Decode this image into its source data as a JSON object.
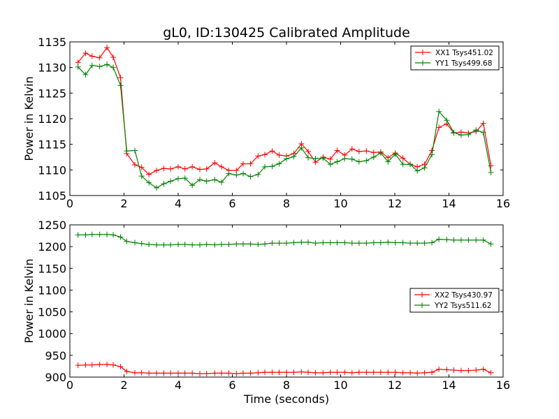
{
  "figure": {
    "title": "gL0, ID:130425 Calibrated Amplitude"
  },
  "chart_data": [
    {
      "type": "line",
      "ylabel": "Power in Kelvin",
      "xlabel": "",
      "xlim": [
        0,
        16
      ],
      "ylim": [
        1105,
        1135
      ],
      "xticks": [
        "0",
        "2",
        "4",
        "6",
        "8",
        "10",
        "12",
        "14",
        "16"
      ],
      "yticks": [
        "1105",
        "1110",
        "1115",
        "1120",
        "1125",
        "1130",
        "1135"
      ],
      "legend_position": "top-right",
      "x": [
        0.3,
        0.58,
        0.82,
        1.1,
        1.37,
        1.6,
        1.87,
        2.1,
        2.4,
        2.65,
        2.92,
        3.2,
        3.47,
        3.72,
        4.0,
        4.25,
        4.52,
        4.8,
        5.05,
        5.35,
        5.6,
        5.87,
        6.15,
        6.4,
        6.67,
        6.95,
        7.2,
        7.47,
        7.73,
        8.0,
        8.27,
        8.55,
        8.8,
        9.07,
        9.35,
        9.62,
        9.87,
        10.15,
        10.42,
        10.68,
        10.95,
        11.22,
        11.48,
        11.75,
        12.02,
        12.3,
        12.57,
        12.83,
        13.1,
        13.37,
        13.63,
        13.92,
        14.18,
        14.45,
        14.72,
        15.0,
        15.27,
        15.55
      ],
      "series": [
        {
          "name": "XX1 Tsys451.02",
          "color": "#ff0000",
          "values": [
            1131.0,
            1132.8,
            1132.2,
            1131.9,
            1133.9,
            1132.0,
            1128.0,
            1113.2,
            1111.0,
            1110.5,
            1109.1,
            1109.9,
            1110.3,
            1110.2,
            1110.6,
            1110.2,
            1110.6,
            1110.1,
            1110.2,
            1111.4,
            1110.6,
            1109.9,
            1109.9,
            1111.2,
            1111.2,
            1112.7,
            1113.0,
            1113.7,
            1112.9,
            1112.7,
            1113.2,
            1115.1,
            1113.6,
            1111.5,
            1112.5,
            1112.1,
            1113.8,
            1112.9,
            1114.1,
            1113.6,
            1113.7,
            1113.4,
            1113.5,
            1112.4,
            1113.3,
            1112.3,
            1111.1,
            1110.6,
            1111.1,
            1113.8,
            1118.3,
            1119.0,
            1117.2,
            1117.4,
            1117.2,
            1117.5,
            1119.1,
            1110.8
          ]
        },
        {
          "name": "YY1 Tsys499.68",
          "color": "#008000",
          "values": [
            1130.1,
            1128.6,
            1130.4,
            1130.2,
            1130.6,
            1130.0,
            1126.5,
            1113.7,
            1113.8,
            1108.8,
            1107.5,
            1106.5,
            1107.3,
            1107.8,
            1108.3,
            1108.4,
            1107.0,
            1108.1,
            1107.8,
            1108.1,
            1107.6,
            1109.3,
            1109.0,
            1109.3,
            1108.7,
            1109.1,
            1110.6,
            1110.7,
            1111.2,
            1112.2,
            1112.6,
            1114.3,
            1112.4,
            1112.2,
            1112.3,
            1111.1,
            1111.6,
            1112.2,
            1112.1,
            1111.6,
            1111.8,
            1112.5,
            1113.3,
            1111.6,
            1113.1,
            1111.1,
            1111.1,
            1109.8,
            1110.4,
            1113.0,
            1121.4,
            1119.7,
            1117.3,
            1116.8,
            1116.9,
            1117.8,
            1117.3,
            1109.5
          ]
        }
      ]
    },
    {
      "type": "line",
      "ylabel": "Power in Kelvin",
      "xlabel": "Time (seconds)",
      "xlim": [
        0,
        16
      ],
      "ylim": [
        900,
        1250
      ],
      "xticks": [
        "0",
        "2",
        "4",
        "6",
        "8",
        "10",
        "12",
        "14",
        "16"
      ],
      "yticks": [
        "900",
        "950",
        "1000",
        "1050",
        "1100",
        "1150",
        "1200",
        "1250"
      ],
      "legend_position": "center-right",
      "x": [
        0.3,
        0.58,
        0.82,
        1.1,
        1.37,
        1.6,
        1.87,
        2.1,
        2.4,
        2.65,
        2.92,
        3.2,
        3.47,
        3.72,
        4.0,
        4.25,
        4.52,
        4.8,
        5.05,
        5.35,
        5.6,
        5.87,
        6.15,
        6.4,
        6.67,
        6.95,
        7.2,
        7.47,
        7.73,
        8.0,
        8.27,
        8.55,
        8.8,
        9.07,
        9.35,
        9.62,
        9.87,
        10.15,
        10.42,
        10.68,
        10.95,
        11.22,
        11.48,
        11.75,
        12.02,
        12.3,
        12.57,
        12.83,
        13.1,
        13.37,
        13.63,
        13.92,
        14.18,
        14.45,
        14.72,
        15.0,
        15.27,
        15.55
      ],
      "series": [
        {
          "name": "XX2 Tsys430.97",
          "color": "#ff0000",
          "values": [
            927,
            928,
            928,
            929,
            929,
            928,
            924,
            913,
            910,
            910,
            909,
            909,
            909,
            909,
            909,
            909,
            909,
            908,
            908,
            909,
            909,
            909,
            908,
            909,
            909,
            910,
            911,
            911,
            911,
            911,
            911,
            912,
            911,
            910,
            910,
            911,
            911,
            911,
            910,
            911,
            911,
            911,
            911,
            911,
            911,
            910,
            910,
            909,
            910,
            911,
            918,
            917,
            916,
            915,
            915,
            916,
            918,
            910
          ]
        },
        {
          "name": "YY2 Tsys511.62",
          "color": "#008000",
          "values": [
            1227,
            1227,
            1228,
            1228,
            1228,
            1227,
            1222,
            1212,
            1209,
            1207,
            1205,
            1204,
            1204,
            1204,
            1205,
            1205,
            1204,
            1204,
            1205,
            1204,
            1205,
            1205,
            1206,
            1206,
            1206,
            1205,
            1206,
            1208,
            1208,
            1208,
            1209,
            1210,
            1210,
            1208,
            1209,
            1209,
            1209,
            1209,
            1208,
            1208,
            1208,
            1209,
            1209,
            1210,
            1209,
            1209,
            1208,
            1208,
            1208,
            1209,
            1217,
            1216,
            1215,
            1215,
            1215,
            1215,
            1215,
            1206
          ]
        }
      ]
    }
  ]
}
